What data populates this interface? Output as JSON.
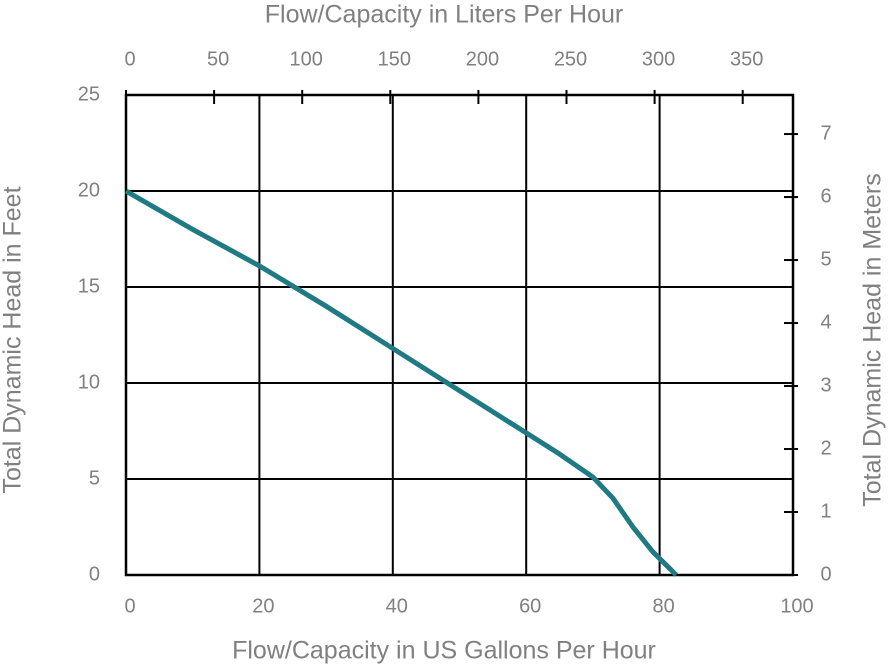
{
  "chart_data": {
    "type": "line",
    "xlabel": "Flow/Capacity in US Gallons Per Hour",
    "x2label": "Flow/Capacity in Liters Per Hour",
    "ylabel": "Total Dynamic Head in Feet",
    "y2label": "Total Dynamic Head in Meters",
    "x": [
      0,
      10,
      20,
      30,
      40,
      50,
      60,
      65,
      70,
      73,
      76,
      79,
      82.5
    ],
    "values": [
      20,
      18,
      16.1,
      14,
      11.8,
      9.6,
      7.4,
      6.3,
      5.1,
      4,
      2.5,
      1.2,
      0
    ],
    "color": "#1f7a84",
    "xlim": [
      0,
      100
    ],
    "xticks": [
      0,
      20,
      40,
      60,
      80,
      100
    ],
    "x2lim": [
      0,
      378.54
    ],
    "x2ticks": [
      0,
      50,
      100,
      150,
      200,
      250,
      300,
      350
    ],
    "ylim": [
      0,
      25
    ],
    "yticks": [
      0,
      5,
      10,
      15,
      20,
      25
    ],
    "y2lim": [
      0,
      7.62
    ],
    "y2ticks": [
      0,
      1,
      2,
      3,
      4,
      5,
      6,
      7
    ],
    "grid": true
  }
}
